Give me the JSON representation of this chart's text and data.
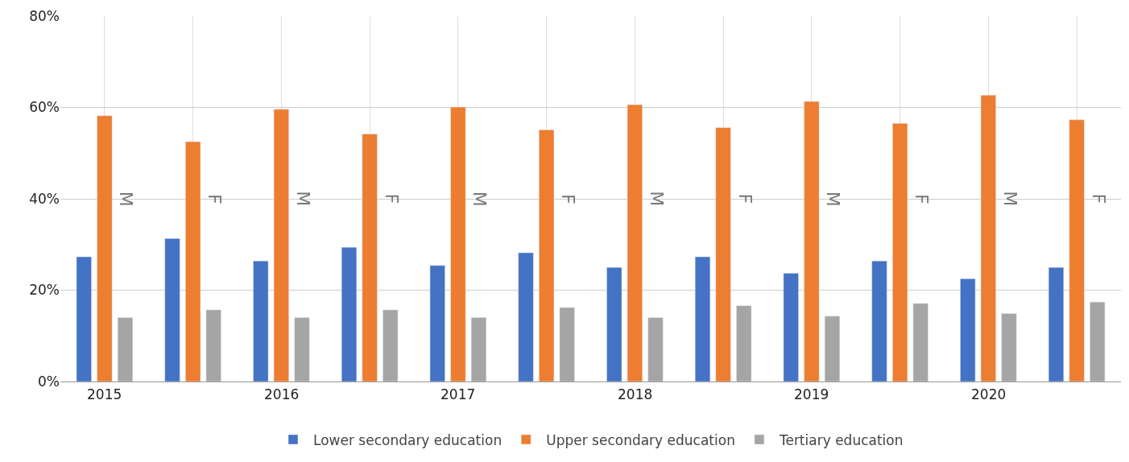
{
  "chart_data": {
    "type": "bar",
    "categories": [
      "M",
      "F",
      "M",
      "F",
      "M",
      "F",
      "M",
      "F",
      "M",
      "F",
      "M",
      "F"
    ],
    "annotations": [
      "2015",
      "2016",
      "2017",
      "2018",
      "2019",
      "2020"
    ],
    "series": [
      {
        "name": "Lower secondary education",
        "color": "#4472c4",
        "values": [
          27.3,
          31.3,
          26.4,
          29.4,
          25.4,
          28.2,
          25.0,
          27.3,
          23.7,
          26.4,
          22.5,
          25.0
        ]
      },
      {
        "name": "Upper secondary education",
        "color": "#ed7d31",
        "values": [
          58.2,
          52.5,
          59.6,
          54.2,
          60.1,
          55.1,
          60.6,
          55.6,
          61.3,
          56.5,
          62.7,
          57.3
        ]
      },
      {
        "name": "Tertiary education",
        "color": "#a5a5a5",
        "values": [
          14.0,
          15.7,
          14.0,
          15.7,
          14.0,
          16.2,
          14.0,
          16.6,
          14.3,
          17.1,
          14.9,
          17.4
        ]
      }
    ],
    "ylim": [
      0,
      80
    ],
    "yticks": [
      {
        "value": 0,
        "label": "0%"
      },
      {
        "value": 20,
        "label": "20%"
      },
      {
        "value": 40,
        "label": "40%"
      },
      {
        "value": 60,
        "label": "60%"
      },
      {
        "value": 80,
        "label": "80%"
      }
    ],
    "grid": true,
    "legend": "bottom"
  }
}
